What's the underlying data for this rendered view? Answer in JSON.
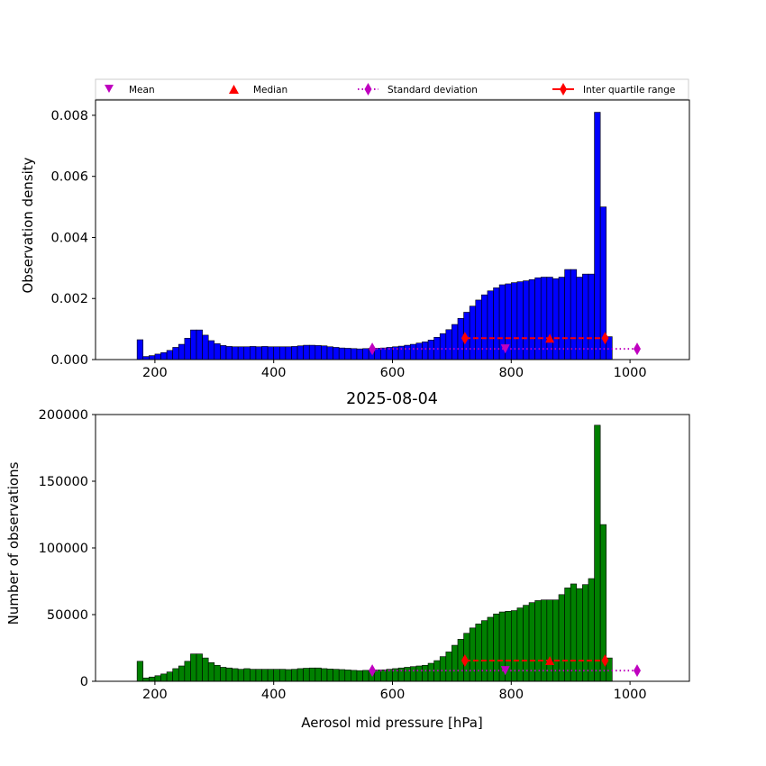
{
  "figure": {
    "title": "2025-08-04",
    "xlabel": "Aerosol mid pressure [hPa]"
  },
  "legend": {
    "mean": "Mean",
    "median": "Median",
    "std": "Standard deviation",
    "iqr": "Inter quartile range"
  },
  "colors": {
    "density_bar": "#0000ff",
    "count_bar": "#008000",
    "mean": "#bf00bf",
    "median": "#ff0000",
    "std": "#bf00bf",
    "iqr": "#ff0000"
  },
  "chart_data": [
    {
      "type": "bar",
      "name": "density",
      "ylabel": "Observation density",
      "xlim": [
        100,
        1100
      ],
      "ylim": [
        0,
        0.0085
      ],
      "xticks": [
        200,
        400,
        600,
        800,
        1000
      ],
      "yticks": [
        0,
        0.002,
        0.004,
        0.006,
        0.008
      ],
      "ytick_labels": [
        "0.000",
        "0.002",
        "0.004",
        "0.006",
        "0.008"
      ],
      "bin_start": 170,
      "bin_width": 10,
      "values": [
        0.00065,
        0.0001,
        0.00013,
        0.00018,
        0.00023,
        0.0003,
        0.0004,
        0.0005,
        0.0007,
        0.00097,
        0.00097,
        0.0008,
        0.00062,
        0.00052,
        0.00046,
        0.00043,
        0.00042,
        0.00042,
        0.00042,
        0.00043,
        0.00042,
        0.00043,
        0.00042,
        0.00042,
        0.00042,
        0.00042,
        0.00043,
        0.00045,
        0.00047,
        0.00047,
        0.00046,
        0.00045,
        0.00042,
        0.0004,
        0.00038,
        0.00037,
        0.00036,
        0.00035,
        0.00036,
        0.00037,
        0.00037,
        0.00038,
        0.0004,
        0.00042,
        0.00044,
        0.00047,
        0.0005,
        0.00054,
        0.00058,
        0.00064,
        0.00073,
        0.00085,
        0.00098,
        0.00115,
        0.00135,
        0.00155,
        0.00175,
        0.00195,
        0.00212,
        0.00225,
        0.00235,
        0.00245,
        0.00248,
        0.00252,
        0.00255,
        0.00258,
        0.00262,
        0.00268,
        0.0027,
        0.0027,
        0.00265,
        0.0027,
        0.00295,
        0.00295,
        0.0027,
        0.0028,
        0.0028,
        0.0081,
        0.005,
        0.00075
      ],
      "mean": {
        "x": 790,
        "y": 0.00035
      },
      "median": {
        "x": 865,
        "y": 0.0007
      },
      "std": {
        "x": [
          566,
          1012
        ],
        "y": 0.00035
      },
      "iqr": {
        "x": [
          722,
          958
        ],
        "y": 0.0007
      }
    },
    {
      "type": "bar",
      "name": "count",
      "ylabel": "Number of observations",
      "xlim": [
        100,
        1100
      ],
      "ylim": [
        0,
        200000
      ],
      "xticks": [
        200,
        400,
        600,
        800,
        1000
      ],
      "yticks": [
        0,
        50000,
        100000,
        150000,
        200000
      ],
      "ytick_labels": [
        "0",
        "50000",
        "100000",
        "150000",
        "200000"
      ],
      "bin_start": 170,
      "bin_width": 10,
      "values": [
        15000,
        2500,
        3200,
        4200,
        5500,
        7000,
        9500,
        11500,
        15000,
        20500,
        20500,
        17500,
        14000,
        12000,
        10500,
        10000,
        9500,
        9000,
        9500,
        9000,
        9000,
        9000,
        9000,
        9000,
        9000,
        8800,
        9000,
        9500,
        9800,
        10000,
        10000,
        9500,
        9200,
        9000,
        8800,
        8500,
        8200,
        8000,
        8200,
        8300,
        8500,
        8600,
        9000,
        9500,
        10000,
        10500,
        11000,
        11500,
        12000,
        13500,
        15500,
        18500,
        22000,
        27000,
        31500,
        36000,
        40000,
        43000,
        45500,
        48000,
        50500,
        52000,
        52500,
        53000,
        55000,
        57000,
        59000,
        60500,
        61000,
        61000,
        61000,
        65000,
        70000,
        73000,
        69500,
        72500,
        77000,
        192000,
        117500,
        17500
      ],
      "mean": {
        "x": 790,
        "y": 8000
      },
      "median": {
        "x": 865,
        "y": 15500
      },
      "std": {
        "x": [
          566,
          1012
        ],
        "y": 8000
      },
      "iqr": {
        "x": [
          722,
          958
        ],
        "y": 15500
      }
    }
  ]
}
